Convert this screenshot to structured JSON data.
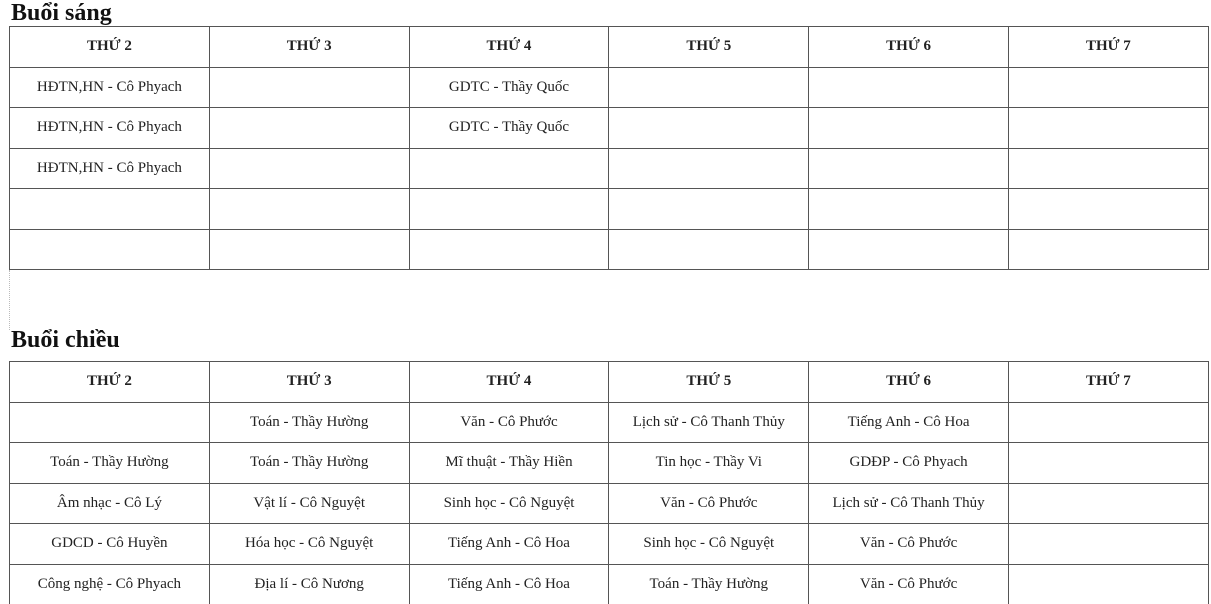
{
  "morning": {
    "title": "Buổi sáng",
    "headers": [
      "THỨ 2",
      "THỨ 3",
      "THỨ 4",
      "THỨ 5",
      "THỨ 6",
      "THỨ 7"
    ],
    "rows": [
      [
        "HĐTN,HN - Cô Phyach",
        "",
        "GDTC - Thầy Quốc",
        "",
        "",
        ""
      ],
      [
        "HĐTN,HN - Cô Phyach",
        "",
        "GDTC - Thầy Quốc",
        "",
        "",
        ""
      ],
      [
        "HĐTN,HN - Cô Phyach",
        "",
        "",
        "",
        "",
        ""
      ],
      [
        "",
        "",
        "",
        "",
        "",
        ""
      ],
      [
        "",
        "",
        "",
        "",
        "",
        ""
      ]
    ]
  },
  "afternoon": {
    "title": "Buổi chiều",
    "headers": [
      "THỨ 2",
      "THỨ 3",
      "THỨ 4",
      "THỨ 5",
      "THỨ 6",
      "THỨ 7"
    ],
    "rows": [
      [
        "",
        "Toán - Thầy Hường",
        "Văn - Cô Phước",
        "Lịch sử - Cô Thanh Thủy",
        "Tiếng Anh - Cô Hoa",
        ""
      ],
      [
        "Toán - Thầy Hường",
        "Toán - Thầy Hường",
        "Mĩ thuật - Thầy Hiền",
        "Tin học - Thầy Vi",
        "GDĐP - Cô Phyach",
        ""
      ],
      [
        "Âm nhạc - Cô Lý",
        "Vật lí - Cô Nguyệt",
        "Sinh học - Cô Nguyệt",
        "Văn - Cô Phước",
        "Lịch sử - Cô Thanh Thủy",
        ""
      ],
      [
        "GDCD - Cô Huyền",
        "Hóa học - Cô Nguyệt",
        "Tiếng Anh - Cô Hoa",
        "Sinh học - Cô Nguyệt",
        "Văn - Cô Phước",
        ""
      ],
      [
        "Công nghệ - Cô Phyach",
        "Địa lí - Cô Nương",
        "Tiếng Anh - Cô Hoa",
        "Toán - Thầy Hường",
        "Văn - Cô Phước",
        ""
      ]
    ]
  }
}
